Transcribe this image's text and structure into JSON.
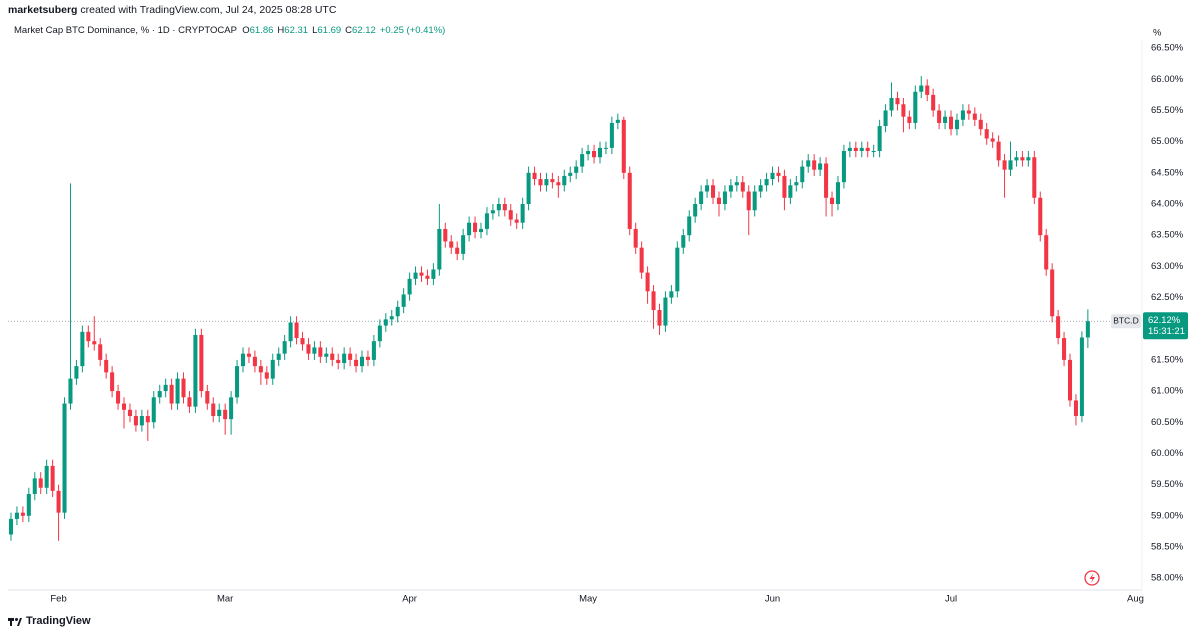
{
  "header": {
    "user": "marketsuberg",
    "note": "created with TradingView.com, Jul 24, 2025 08:28 UTC"
  },
  "chart_data": {
    "type": "candlestick",
    "title": "Market Cap BTC Dominance, % · 1D · CRYPTOCAP",
    "legend": {
      "items": [
        {
          "key": "O",
          "value": 61.86
        },
        {
          "key": "H",
          "value": 62.31
        },
        {
          "key": "L",
          "value": 61.69
        },
        {
          "key": "C",
          "value": 62.12
        }
      ],
      "change": "+0.25 (+0.41%)"
    },
    "up_color": "#089981",
    "down_color": "#f23645",
    "grid": false,
    "y_unit": "%",
    "xlim": [
      -0.5,
      190.1
    ],
    "xticks": [
      {
        "value": 8,
        "label": "Feb"
      },
      {
        "value": 36,
        "label": "Mar"
      },
      {
        "value": 67,
        "label": "Apr"
      },
      {
        "value": 97,
        "label": "May"
      },
      {
        "value": 128,
        "label": "Jun"
      },
      {
        "value": 158,
        "label": "Jul"
      },
      {
        "value": 189,
        "label": "Aug"
      }
    ],
    "ylim": [
      57.81,
      66.63
    ],
    "yticks": [
      {
        "value": 58,
        "label": "58.00%"
      },
      {
        "value": 58.5,
        "label": "58.50%"
      },
      {
        "value": 59,
        "label": "59.00%"
      },
      {
        "value": 59.5,
        "label": "59.50%"
      },
      {
        "value": 60,
        "label": "60.00%"
      },
      {
        "value": 60.5,
        "label": "60.50%"
      },
      {
        "value": 61,
        "label": "61.00%"
      },
      {
        "value": 61.5,
        "label": "61.50%"
      },
      {
        "value": 62,
        "label": "62.00%"
      },
      {
        "value": 62.5,
        "label": "62.50%"
      },
      {
        "value": 63,
        "label": "63.00%"
      },
      {
        "value": 63.5,
        "label": "63.50%"
      },
      {
        "value": 64,
        "label": "64.00%"
      },
      {
        "value": 64.5,
        "label": "64.50%"
      },
      {
        "value": 65,
        "label": "65.00%"
      },
      {
        "value": 65.5,
        "label": "65.50%"
      },
      {
        "value": 66,
        "label": "66.00%"
      },
      {
        "value": 66.5,
        "label": "66.50%"
      }
    ],
    "symbol_tag": "BTC.D",
    "last_price": {
      "value": 62.12,
      "label": "62.12%"
    },
    "countdown": "15:31:21",
    "open": [
      58.7,
      58.95,
      59.05,
      59.0,
      59.35,
      59.6,
      59.45,
      59.8,
      59.4,
      59.05,
      60.8,
      61.2,
      61.4,
      61.95,
      61.8,
      61.75,
      61.5,
      61.3,
      61.0,
      60.8,
      60.7,
      60.6,
      60.45,
      60.6,
      60.5,
      60.9,
      61.0,
      61.1,
      60.8,
      61.2,
      60.9,
      60.75,
      61.9,
      61.0,
      60.8,
      60.6,
      60.7,
      60.55,
      60.9,
      61.4,
      61.6,
      61.55,
      61.4,
      61.3,
      61.2,
      61.5,
      61.6,
      61.8,
      62.1,
      61.85,
      61.75,
      61.6,
      61.7,
      61.55,
      61.6,
      61.5,
      61.45,
      61.6,
      61.5,
      61.4,
      61.55,
      61.5,
      61.8,
      62.05,
      62.15,
      62.2,
      62.35,
      62.55,
      62.8,
      62.9,
      62.85,
      62.8,
      62.95,
      63.6,
      63.4,
      63.3,
      63.2,
      63.5,
      63.7,
      63.55,
      63.6,
      63.85,
      63.9,
      64.0,
      63.9,
      63.75,
      63.7,
      64.0,
      64.5,
      64.4,
      64.3,
      64.4,
      64.35,
      64.3,
      64.45,
      64.5,
      64.6,
      64.8,
      64.85,
      64.75,
      64.9,
      64.9,
      65.3,
      65.35,
      64.5,
      63.6,
      63.3,
      62.9,
      62.6,
      62.3,
      62.05,
      62.5,
      62.6,
      63.3,
      63.5,
      63.8,
      64.0,
      64.2,
      64.3,
      64.1,
      64.0,
      64.2,
      64.3,
      64.35,
      64.2,
      63.9,
      64.2,
      64.3,
      64.4,
      64.5,
      64.45,
      64.1,
      64.3,
      64.35,
      64.6,
      64.7,
      64.55,
      64.65,
      64.1,
      64.0,
      64.35,
      64.85,
      64.9,
      64.85,
      64.9,
      64.85,
      64.85,
      65.25,
      65.5,
      65.7,
      65.6,
      65.4,
      65.3,
      65.8,
      65.9,
      65.75,
      65.5,
      65.3,
      65.4,
      65.2,
      65.35,
      65.5,
      65.45,
      65.35,
      65.2,
      65.05,
      65.0,
      64.7,
      64.55,
      64.7,
      64.75,
      64.7,
      64.75,
      64.1,
      63.5,
      62.95,
      62.2,
      61.85,
      61.5,
      60.85,
      60.6,
      61.86
    ],
    "high": [
      59.05,
      59.15,
      59.15,
      59.45,
      59.7,
      59.7,
      59.9,
      59.9,
      59.5,
      60.9,
      64.33,
      61.5,
      62.05,
      62.05,
      62.2,
      61.85,
      61.6,
      61.4,
      61.1,
      60.9,
      60.8,
      60.7,
      60.7,
      60.7,
      61.0,
      61.1,
      61.2,
      61.2,
      61.3,
      61.3,
      61.0,
      62.0,
      62.0,
      61.1,
      60.9,
      60.8,
      60.8,
      61.0,
      61.5,
      61.7,
      61.7,
      61.65,
      61.5,
      61.4,
      61.6,
      61.7,
      61.9,
      62.2,
      62.2,
      61.95,
      61.85,
      61.8,
      61.8,
      61.7,
      61.7,
      61.6,
      61.7,
      61.7,
      61.6,
      61.65,
      61.65,
      61.9,
      62.15,
      62.25,
      62.3,
      62.45,
      62.65,
      62.9,
      63.0,
      63.0,
      62.95,
      63.05,
      64.0,
      63.7,
      63.5,
      63.4,
      63.6,
      63.8,
      63.8,
      63.7,
      63.95,
      64.0,
      64.1,
      64.1,
      64.0,
      63.85,
      64.1,
      64.6,
      64.6,
      64.5,
      64.5,
      64.5,
      64.45,
      64.55,
      64.6,
      64.7,
      64.9,
      64.95,
      64.95,
      65.0,
      65.0,
      65.4,
      65.45,
      65.4,
      64.6,
      63.7,
      63.4,
      63.0,
      62.7,
      62.4,
      62.6,
      62.7,
      63.4,
      63.6,
      63.9,
      64.1,
      64.3,
      64.4,
      64.4,
      64.2,
      64.3,
      64.4,
      64.45,
      64.45,
      64.3,
      64.3,
      64.4,
      64.5,
      64.6,
      64.6,
      64.55,
      64.4,
      64.45,
      64.7,
      64.8,
      64.8,
      64.75,
      64.75,
      64.2,
      64.45,
      64.95,
      65.0,
      65.0,
      65.0,
      65.0,
      64.95,
      65.35,
      65.6,
      65.95,
      65.8,
      65.7,
      65.5,
      65.9,
      66.05,
      66.0,
      65.85,
      65.6,
      65.5,
      65.5,
      65.45,
      65.6,
      65.6,
      65.55,
      65.45,
      65.3,
      65.15,
      65.1,
      64.8,
      65.0,
      64.85,
      64.85,
      64.85,
      64.85,
      64.2,
      63.6,
      63.05,
      62.3,
      61.95,
      61.6,
      60.95,
      61.96,
      62.31
    ],
    "low": [
      58.6,
      58.85,
      58.9,
      58.9,
      59.25,
      59.35,
      59.35,
      59.3,
      58.6,
      58.95,
      60.7,
      61.1,
      61.3,
      61.7,
      61.65,
      61.4,
      61.2,
      60.9,
      60.7,
      60.4,
      60.5,
      60.35,
      60.35,
      60.2,
      60.4,
      60.8,
      60.9,
      60.7,
      60.7,
      60.8,
      60.65,
      60.65,
      60.9,
      60.7,
      60.5,
      60.5,
      60.3,
      60.3,
      60.8,
      61.3,
      61.45,
      61.3,
      61.1,
      61.1,
      61.1,
      61.4,
      61.5,
      61.7,
      61.75,
      61.65,
      61.5,
      61.5,
      61.45,
      61.45,
      61.4,
      61.35,
      61.35,
      61.4,
      61.3,
      61.3,
      61.4,
      61.4,
      61.7,
      61.95,
      62.05,
      62.1,
      62.25,
      62.45,
      62.7,
      62.75,
      62.7,
      62.7,
      62.85,
      63.3,
      63.2,
      63.1,
      63.1,
      63.4,
      63.45,
      63.45,
      63.5,
      63.75,
      63.8,
      63.8,
      63.65,
      63.6,
      63.6,
      63.9,
      64.3,
      64.2,
      64.2,
      64.25,
      64.1,
      64.2,
      64.35,
      64.4,
      64.5,
      64.7,
      64.65,
      64.65,
      64.8,
      64.8,
      65.2,
      64.4,
      63.5,
      63.2,
      62.8,
      62.4,
      62.0,
      61.9,
      61.95,
      62.4,
      62.5,
      63.2,
      63.4,
      63.7,
      63.9,
      64.1,
      64.0,
      63.8,
      63.9,
      64.1,
      64.2,
      64.1,
      63.5,
      63.8,
      64.1,
      64.2,
      64.3,
      64.35,
      63.9,
      64.0,
      64.2,
      64.25,
      64.5,
      64.45,
      64.45,
      63.8,
      63.8,
      63.9,
      64.25,
      64.75,
      64.75,
      64.75,
      64.75,
      64.75,
      64.75,
      65.15,
      65.4,
      65.5,
      65.15,
      65.2,
      65.2,
      65.7,
      65.65,
      65.4,
      65.2,
      65.2,
      65.1,
      65.1,
      65.25,
      65.35,
      65.25,
      65.1,
      64.95,
      64.9,
      64.6,
      64.1,
      64.45,
      64.6,
      64.6,
      64.6,
      64.0,
      63.4,
      62.85,
      62.1,
      61.75,
      61.4,
      60.75,
      60.45,
      60.5,
      61.69
    ],
    "close": [
      58.95,
      59.05,
      59.0,
      59.35,
      59.6,
      59.45,
      59.8,
      59.4,
      59.05,
      60.8,
      61.2,
      61.4,
      61.95,
      61.8,
      61.75,
      61.5,
      61.3,
      61.0,
      60.8,
      60.7,
      60.6,
      60.45,
      60.6,
      60.5,
      60.9,
      61.0,
      61.1,
      60.8,
      61.2,
      60.9,
      60.75,
      61.9,
      61.0,
      60.8,
      60.6,
      60.7,
      60.55,
      60.9,
      61.4,
      61.6,
      61.55,
      61.4,
      61.3,
      61.2,
      61.5,
      61.6,
      61.8,
      62.1,
      61.85,
      61.75,
      61.6,
      61.7,
      61.55,
      61.6,
      61.5,
      61.45,
      61.6,
      61.5,
      61.4,
      61.55,
      61.5,
      61.8,
      62.05,
      62.15,
      62.2,
      62.35,
      62.55,
      62.8,
      62.9,
      62.85,
      62.8,
      62.95,
      63.6,
      63.4,
      63.3,
      63.2,
      63.5,
      63.7,
      63.55,
      63.6,
      63.85,
      63.9,
      64.0,
      63.9,
      63.75,
      63.7,
      64.0,
      64.5,
      64.4,
      64.3,
      64.4,
      64.35,
      64.3,
      64.45,
      64.5,
      64.6,
      64.8,
      64.85,
      64.75,
      64.9,
      64.9,
      65.3,
      65.35,
      64.5,
      63.6,
      63.3,
      62.9,
      62.6,
      62.3,
      62.05,
      62.5,
      62.6,
      63.3,
      63.5,
      63.8,
      64.0,
      64.2,
      64.3,
      64.1,
      64.0,
      64.2,
      64.3,
      64.35,
      64.2,
      63.9,
      64.2,
      64.3,
      64.4,
      64.5,
      64.45,
      64.1,
      64.3,
      64.35,
      64.6,
      64.7,
      64.55,
      64.65,
      64.1,
      64.0,
      64.35,
      64.85,
      64.9,
      64.85,
      64.9,
      64.85,
      64.85,
      65.25,
      65.5,
      65.7,
      65.6,
      65.4,
      65.3,
      65.8,
      65.9,
      65.75,
      65.5,
      65.3,
      65.4,
      65.2,
      65.35,
      65.5,
      65.45,
      65.35,
      65.2,
      65.05,
      65.0,
      64.7,
      64.55,
      64.7,
      64.75,
      64.7,
      64.75,
      64.1,
      63.5,
      62.95,
      62.2,
      61.85,
      61.5,
      60.85,
      60.6,
      61.86,
      62.12
    ]
  },
  "footer": {
    "brand": "TradingView"
  }
}
